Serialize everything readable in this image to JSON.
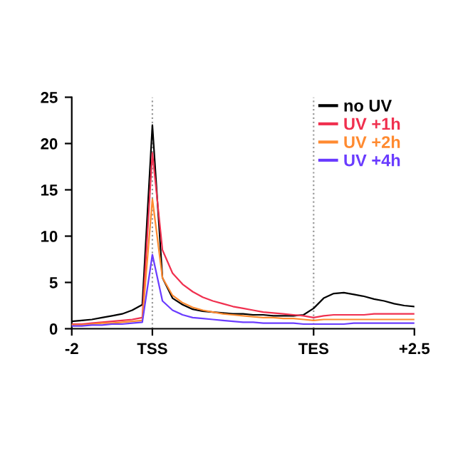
{
  "chart_data": {
    "type": "line",
    "categories": [
      "-2",
      null,
      null,
      null,
      null,
      null,
      null,
      null,
      "TSS",
      null,
      null,
      null,
      null,
      null,
      null,
      null,
      null,
      null,
      null,
      null,
      null,
      null,
      null,
      null,
      "TES",
      null,
      null,
      null,
      null,
      null,
      null,
      null,
      null,
      null,
      "+2.5"
    ],
    "series": [
      {
        "name": "no UV",
        "color": "#000000",
        "values": [
          0.8,
          0.9,
          1.0,
          1.2,
          1.4,
          1.6,
          2.0,
          2.6,
          22,
          5.5,
          3.3,
          2.6,
          2.1,
          1.9,
          1.8,
          1.7,
          1.6,
          1.6,
          1.5,
          1.5,
          1.4,
          1.4,
          1.4,
          1.5,
          2.2,
          3.3,
          3.8,
          3.9,
          3.7,
          3.5,
          3.2,
          3.0,
          2.7,
          2.5,
          2.4
        ]
      },
      {
        "name": "UV +1h",
        "color": "#f0304f",
        "values": [
          0.5,
          0.5,
          0.6,
          0.7,
          0.8,
          0.9,
          1.0,
          1.2,
          19,
          8.5,
          6,
          4.8,
          4,
          3.4,
          3,
          2.7,
          2.4,
          2.2,
          2,
          1.8,
          1.7,
          1.6,
          1.5,
          1.4,
          1.2,
          1.4,
          1.5,
          1.5,
          1.5,
          1.5,
          1.6,
          1.6,
          1.6,
          1.6,
          1.6
        ]
      },
      {
        "name": "UV +2h",
        "color": "#ff8a30",
        "values": [
          0.4,
          0.4,
          0.5,
          0.6,
          0.6,
          0.7,
          0.8,
          0.9,
          14,
          5.5,
          3.6,
          2.8,
          2.3,
          2,
          1.8,
          1.6,
          1.5,
          1.4,
          1.3,
          1.2,
          1.2,
          1.1,
          1.1,
          1,
          0.9,
          1,
          1,
          1,
          1,
          1,
          1,
          1,
          1,
          1,
          1
        ]
      },
      {
        "name": "UV +4h",
        "color": "#6a3cff",
        "values": [
          0.3,
          0.3,
          0.4,
          0.4,
          0.5,
          0.5,
          0.6,
          0.7,
          8,
          3,
          2,
          1.5,
          1.2,
          1.1,
          1,
          0.9,
          0.8,
          0.7,
          0.7,
          0.6,
          0.6,
          0.6,
          0.6,
          0.5,
          0.5,
          0.5,
          0.5,
          0.5,
          0.6,
          0.6,
          0.6,
          0.6,
          0.6,
          0.6,
          0.6
        ]
      }
    ],
    "ylim": [
      0,
      25
    ],
    "yticks": [
      0,
      5,
      10,
      15,
      20,
      25
    ],
    "ref_lines": [
      {
        "axis": "x",
        "value": "TSS",
        "color": "#9a9a9a",
        "line_style": "dotted"
      },
      {
        "axis": "x",
        "value": "TES",
        "color": "#9a9a9a",
        "line_style": "dotted"
      }
    ],
    "legend": "top right",
    "grid": false,
    "marker": "none",
    "line_style": "solid"
  }
}
